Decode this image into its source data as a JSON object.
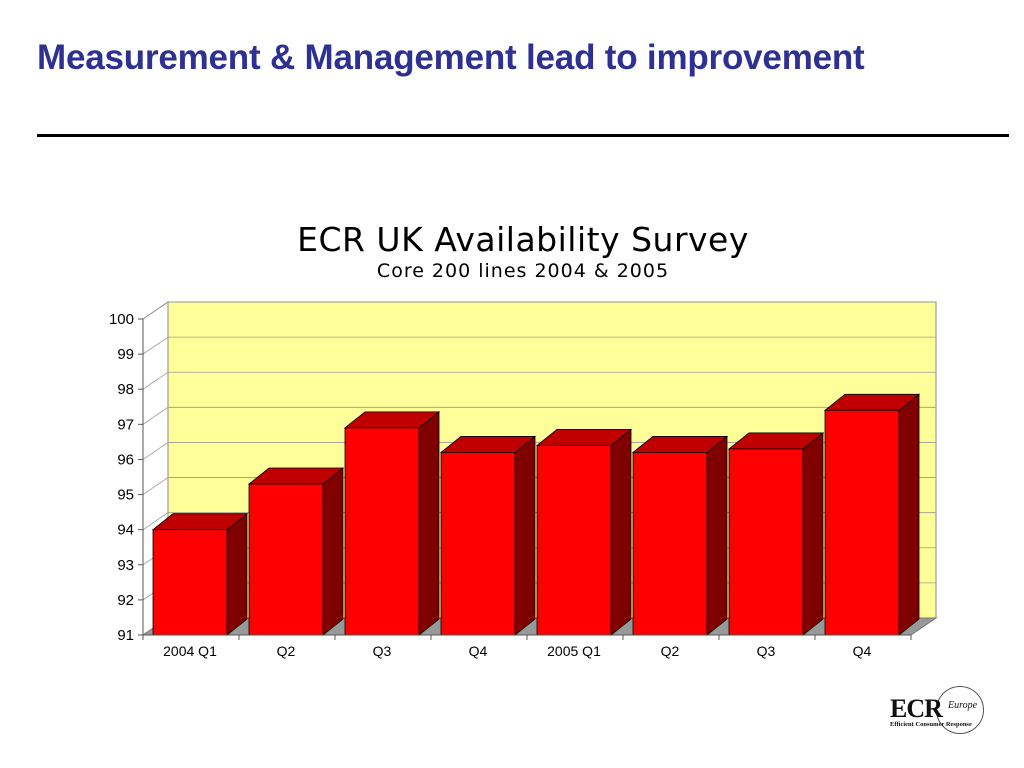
{
  "slide": {
    "title": "Measurement & Management lead to improvement"
  },
  "logo": {
    "main": "ECR",
    "region": "Europe",
    "tagline": "Efficient Consumer Response"
  },
  "colors": {
    "title": "#2e3192",
    "bar_front": "#ff0000",
    "bar_top": "#c00000",
    "bar_side": "#800000",
    "plot_back": "#ffff99"
  },
  "chart_data": {
    "type": "bar",
    "title": "ECR UK Availability Survey",
    "subtitle": "Core 200 lines 2004 & 2005",
    "categories": [
      "2004 Q1",
      "Q2",
      "Q3",
      "Q4",
      "2005 Q1",
      "Q2",
      "Q3",
      "Q4"
    ],
    "values": [
      94.0,
      95.3,
      96.9,
      96.2,
      96.4,
      96.2,
      96.3,
      97.4
    ],
    "ylim": [
      91,
      100
    ],
    "yticks": [
      91,
      92,
      93,
      94,
      95,
      96,
      97,
      98,
      99,
      100
    ],
    "grid": true,
    "legend": "none",
    "style": "3d"
  }
}
